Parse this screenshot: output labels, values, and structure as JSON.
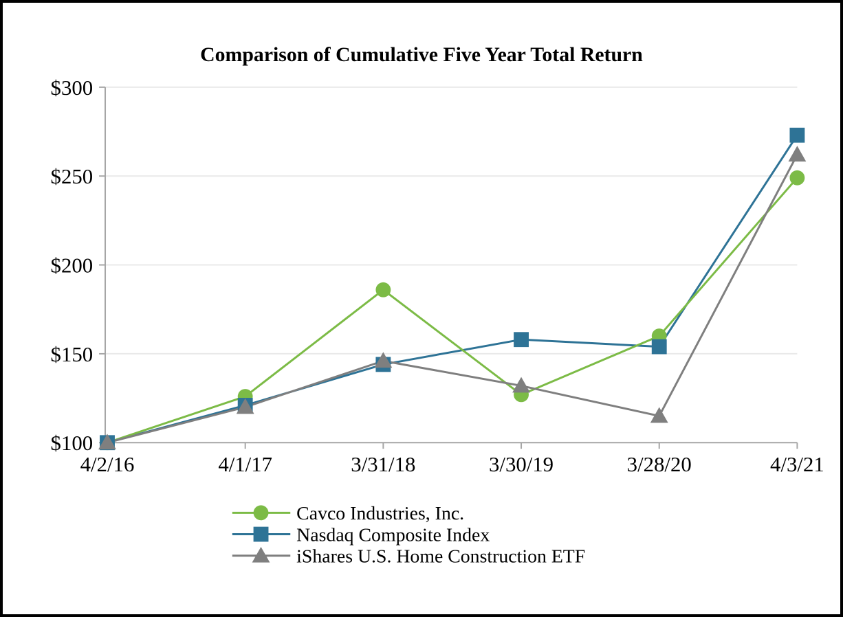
{
  "chart_data": {
    "type": "line",
    "title": "Comparison of Cumulative Five Year Total Return",
    "categories": [
      "4/2/16",
      "4/1/17",
      "3/31/18",
      "3/30/19",
      "3/28/20",
      "4/3/21"
    ],
    "series": [
      {
        "name": "Cavco Industries, Inc.",
        "marker": "circle",
        "color": "#7CBB46",
        "values": [
          100,
          126,
          186,
          127,
          160,
          249
        ]
      },
      {
        "name": "Nasdaq Composite Index",
        "marker": "square",
        "color": "#2E7396",
        "values": [
          100,
          121,
          144,
          158,
          154,
          273
        ]
      },
      {
        "name": "iShares U.S. Home Construction ETF",
        "marker": "triangle",
        "color": "#7F7F7F",
        "values": [
          100,
          120,
          146,
          132,
          115,
          262
        ]
      }
    ],
    "ylim": [
      100,
      300
    ],
    "y_tick_step": 50,
    "y_tick_prefix": "$",
    "y_tick_labels": [
      "$100",
      "$150",
      "$200",
      "$250",
      "$300"
    ],
    "xlabel": "",
    "ylabel": "",
    "grid": true,
    "legend_position": "bottom-left",
    "style": {
      "axis_color": "#A6A6A6",
      "grid_color": "#E9E9E9",
      "text_color": "#000000",
      "background": "#FFFFFF",
      "border_color": "#000000"
    }
  }
}
